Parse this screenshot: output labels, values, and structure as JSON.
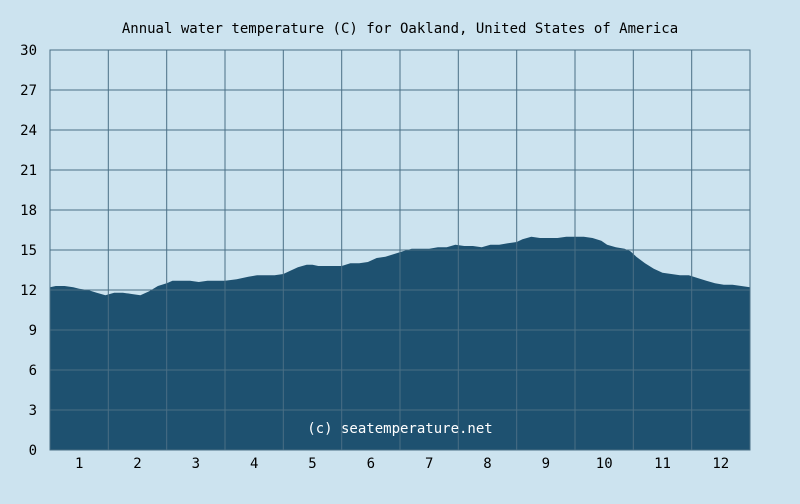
{
  "chart_data": {
    "type": "area",
    "title": "Annual water temperature (C) for Oakland, United States of America",
    "xlabel": "",
    "ylabel": "",
    "ylim": [
      0,
      30
    ],
    "yticks": [
      0,
      3,
      6,
      9,
      12,
      15,
      18,
      21,
      24,
      27,
      30
    ],
    "xlim": [
      0.5,
      12.5
    ],
    "xticks": [
      1,
      2,
      3,
      4,
      5,
      6,
      7,
      8,
      9,
      10,
      11,
      12
    ],
    "xtick_labels": [
      "1",
      "2",
      "3",
      "4",
      "5",
      "6",
      "7",
      "8",
      "9",
      "10",
      "11",
      "12"
    ],
    "grid": true,
    "watermark": "(c) seatemperature.net",
    "colors": {
      "background": "#cce3ef",
      "fill": "#1e5170",
      "grid": "#4a6f85",
      "text": "#000000"
    },
    "series": [
      {
        "x": [
          0.5,
          0.6,
          0.75,
          0.9,
          1.0,
          1.15,
          1.3,
          1.45,
          1.6,
          1.75,
          1.9,
          2.05,
          2.2,
          2.35,
          2.5,
          2.6,
          2.75,
          2.9,
          3.05,
          3.2,
          3.35,
          3.5,
          3.7,
          3.9,
          4.05,
          4.2,
          4.35,
          4.5,
          4.6,
          4.75,
          4.9,
          5.0,
          5.1,
          5.3,
          5.5,
          5.65,
          5.8,
          5.95,
          6.1,
          6.25,
          6.4,
          6.55,
          6.7,
          6.85,
          7.0,
          7.15,
          7.3,
          7.45,
          7.6,
          7.75,
          7.9,
          8.05,
          8.2,
          8.35,
          8.5,
          8.6,
          8.75,
          8.9,
          9.05,
          9.2,
          9.35,
          9.5,
          9.65,
          9.8,
          9.95,
          10.05,
          10.2,
          10.35,
          10.45,
          10.55,
          10.7,
          10.85,
          11.0,
          11.15,
          11.3,
          11.45,
          11.6,
          11.75,
          11.9,
          12.05,
          12.2,
          12.35,
          12.5
        ],
        "values": [
          12.2,
          12.3,
          12.3,
          12.2,
          12.1,
          12.0,
          11.8,
          11.6,
          11.8,
          11.8,
          11.7,
          11.6,
          11.9,
          12.3,
          12.5,
          12.7,
          12.7,
          12.7,
          12.6,
          12.7,
          12.7,
          12.7,
          12.8,
          13.0,
          13.1,
          13.1,
          13.1,
          13.2,
          13.4,
          13.7,
          13.9,
          13.9,
          13.8,
          13.8,
          13.8,
          14.0,
          14.0,
          14.1,
          14.4,
          14.5,
          14.7,
          14.9,
          15.1,
          15.1,
          15.1,
          15.2,
          15.2,
          15.4,
          15.3,
          15.3,
          15.2,
          15.4,
          15.4,
          15.5,
          15.6,
          15.8,
          16.0,
          15.9,
          15.9,
          15.9,
          16.0,
          16.0,
          16.0,
          15.9,
          15.7,
          15.4,
          15.2,
          15.1,
          14.9,
          14.5,
          14.0,
          13.6,
          13.3,
          13.2,
          13.1,
          13.1,
          12.9,
          12.7,
          12.5,
          12.4,
          12.4,
          12.3,
          12.2
        ]
      }
    ]
  }
}
